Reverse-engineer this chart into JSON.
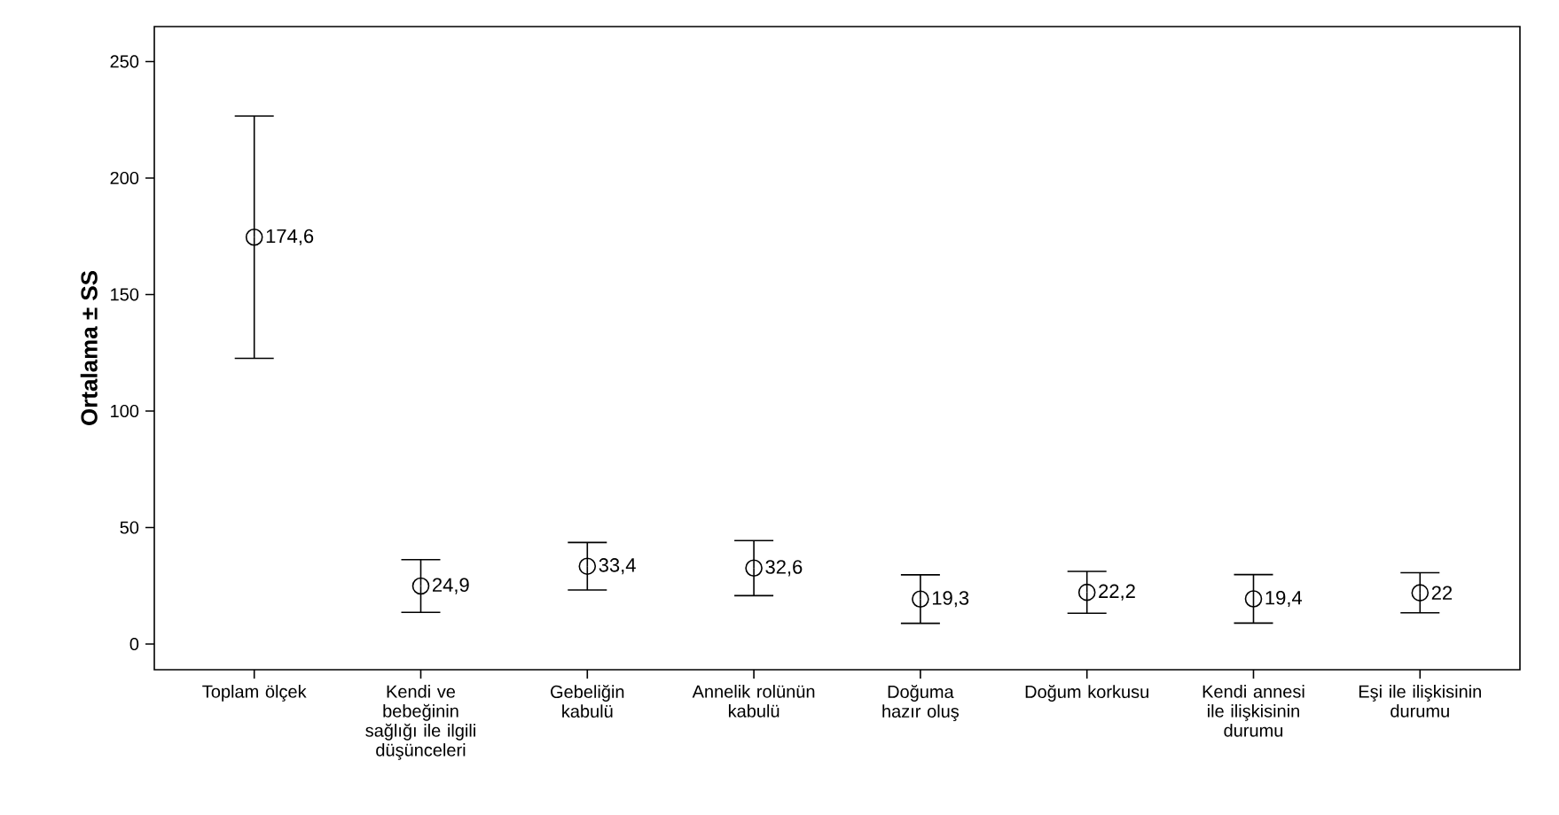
{
  "chart_data": {
    "type": "scatter",
    "ylabel": "Ortalama ± SS",
    "categories": [
      "Toplam ölçek",
      "Kendi ve bebeğinin sağlığı ile ilgili düşünceleri",
      "Gebeliğin kabulü",
      "Annelik rolünün kabulü",
      "Doğuma hazır oluş",
      "Doğum korkusu",
      "Kendi annesi ile ilişkisinin durumu",
      "Eşi ile ilişkisinin durumu"
    ],
    "values": [
      174.6,
      24.9,
      33.4,
      32.6,
      19.3,
      22.2,
      19.4,
      22
    ],
    "errors": [
      52,
      11.3,
      10.2,
      11.8,
      10.4,
      9,
      10.4,
      8.6
    ],
    "value_labels": [
      "174,6",
      "24,9",
      "33,4",
      "32,6",
      "19,3",
      "22,2",
      "19,4",
      "22"
    ],
    "color": "#000000",
    "marker": "circle",
    "ylim": [
      -11,
      265
    ],
    "yticks": [
      0,
      50,
      100,
      150,
      200,
      250
    ]
  }
}
